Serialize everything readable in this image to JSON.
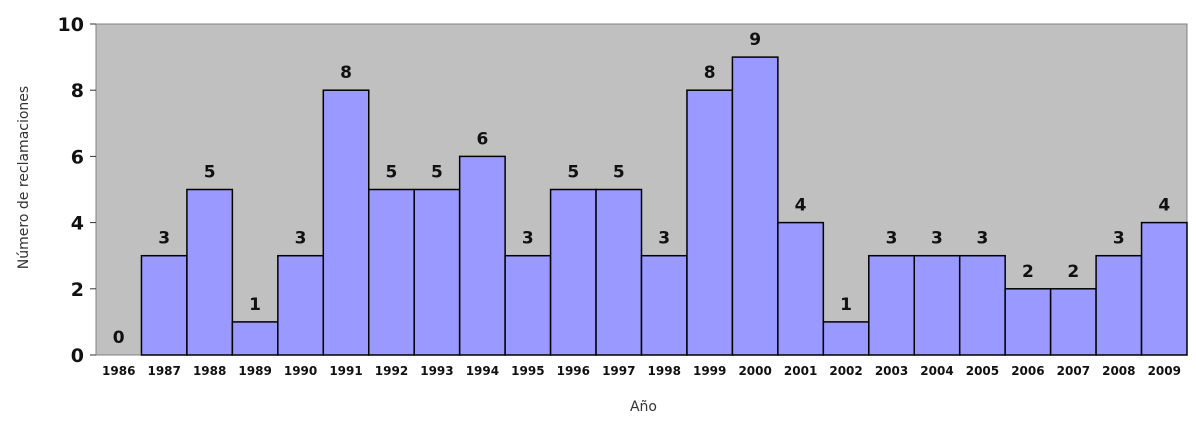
{
  "chart_data": {
    "type": "bar",
    "categories": [
      "1986",
      "1987",
      "1988",
      "1989",
      "1990",
      "1991",
      "1992",
      "1993",
      "1994",
      "1995",
      "1996",
      "1997",
      "1998",
      "1999",
      "2000",
      "2001",
      "2002",
      "2003",
      "2004",
      "2005",
      "2006",
      "2007",
      "2008",
      "2009"
    ],
    "values": [
      0,
      3,
      5,
      1,
      3,
      8,
      5,
      5,
      6,
      3,
      5,
      5,
      3,
      8,
      9,
      4,
      1,
      3,
      3,
      3,
      2,
      2,
      3,
      4
    ],
    "data_labels": [
      "0",
      "3",
      "5",
      "1",
      "3",
      "8",
      "5",
      "5",
      "6",
      "3",
      "5",
      "5",
      "3",
      "8",
      "9",
      "4",
      "1",
      "3",
      "3",
      "3",
      "2",
      "2",
      "3",
      "4"
    ],
    "xlabel": "Año",
    "ylabel": "Número de reclamaciones",
    "ylim": [
      0,
      10
    ],
    "yticks": [
      0,
      2,
      4,
      6,
      8,
      10
    ],
    "grid": false,
    "colors": {
      "bar_fill": "#9999ff",
      "bar_stroke": "#000000",
      "plot_background": "#c0c0c0"
    }
  }
}
